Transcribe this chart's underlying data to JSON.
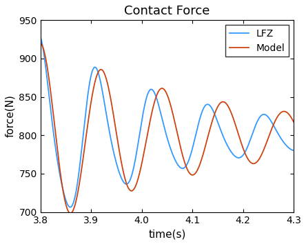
{
  "title": "Contact Force",
  "xlabel": "time(s)",
  "ylabel": "force(N)",
  "xlim": [
    3.8,
    4.3
  ],
  "ylim": [
    700,
    950
  ],
  "xticks": [
    3.8,
    3.9,
    4.0,
    4.1,
    4.2,
    4.3
  ],
  "yticks": [
    700,
    750,
    800,
    850,
    900,
    950
  ],
  "legend": [
    "LFZ",
    "Model"
  ],
  "lfz_color": "#3399FF",
  "model_color": "#CC4411",
  "linewidth": 1.3,
  "title_fontsize": 13,
  "label_fontsize": 11
}
